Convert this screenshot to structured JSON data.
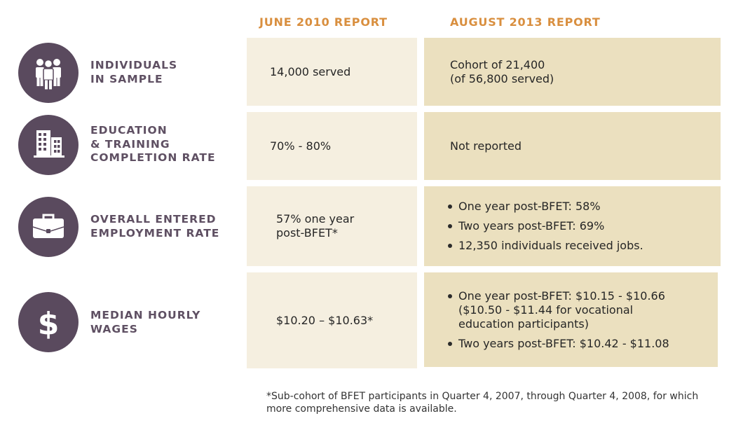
{
  "headers": {
    "col1": "JUNE 2010 REPORT",
    "col2": "AUGUST 2013 REPORT"
  },
  "colors": {
    "header_orange": "#d98f3f",
    "label_purple": "#5f5063",
    "icon_bg": "#5a4a5e",
    "cell_light": "#f5efe0",
    "cell_dark": "#ebe0bf"
  },
  "rows": [
    {
      "icon": "people-group-icon",
      "label": "INDIVIDUALS\nIN SAMPLE",
      "june": "14,000 served",
      "august": "Cohort of 21,400\n(of 56,800 served)"
    },
    {
      "icon": "building-icon",
      "label": "EDUCATION\n& TRAINING\nCOMPLETION RATE",
      "june": "70% - 80%",
      "august": "Not reported"
    },
    {
      "icon": "briefcase-icon",
      "label": "OVERALL ENTERED\nEMPLOYMENT RATE",
      "june": "57% one year\npost-BFET*",
      "august_bullets": [
        "One year post-BFET: 58%",
        "Two years post-BFET: 69%",
        "12,350 individuals received jobs."
      ]
    },
    {
      "icon": "dollar-sign-icon",
      "label": "MEDIAN HOURLY\nWAGES",
      "june": "$10.20 – $10.63*",
      "august_bullets": [
        "One year post-BFET: $10.15 - $10.66\n($10.50 - $11.44 for vocational\neducation participants)",
        "Two years post-BFET: $10.42 - $11.08"
      ]
    }
  ],
  "footnote": "*Sub-cohort of BFET participants in Quarter 4, 2007, through Quarter 4, 2008, for which more comprehensive data is available."
}
